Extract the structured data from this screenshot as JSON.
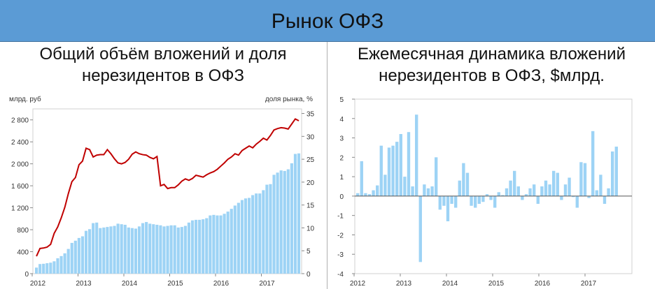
{
  "header": {
    "title": "Рынок ОФЗ"
  },
  "panels": {
    "left": {
      "title_line1": "Общий объём вложений и доля",
      "title_line2": "нерезидентов в ОФЗ"
    },
    "right": {
      "title_line1": "Ежемесячная динамика вложений",
      "title_line2": "нерезидентов в ОФЗ, $млрд."
    }
  },
  "colors": {
    "banner": "#5b9bd5",
    "bars": "#9dd3f5",
    "line": "#c00000"
  },
  "chart_data": [
    {
      "type": "bar+line",
      "left_axis_label": "млрд. руб",
      "right_axis_label": "доля рынка, %",
      "left_ylim": [
        0,
        3000
      ],
      "left_ticks": [
        "2 800",
        "2 400",
        "2 000",
        "1 600",
        "1 200",
        "800",
        "400",
        "0"
      ],
      "right_ylim": [
        0,
        36
      ],
      "right_ticks": [
        "35",
        "30",
        "25",
        "20",
        "15",
        "10",
        "5",
        "0"
      ],
      "x_labels": [
        "2012",
        "2013",
        "2014",
        "2015",
        "2016",
        "2017"
      ],
      "x_start": 2012,
      "bars_label": "Общий объём вложений",
      "line_label": "доля нерезидентов",
      "bar_values": [
        110,
        175,
        180,
        190,
        200,
        225,
        280,
        320,
        370,
        450,
        560,
        600,
        650,
        680,
        780,
        810,
        920,
        930,
        830,
        840,
        850,
        860,
        870,
        910,
        900,
        890,
        840,
        830,
        820,
        860,
        920,
        940,
        910,
        900,
        890,
        880,
        860,
        870,
        880,
        880,
        840,
        850,
        870,
        930,
        970,
        980,
        980,
        990,
        1010,
        1060,
        1070,
        1060,
        1060,
        1090,
        1130,
        1180,
        1240,
        1290,
        1340,
        1370,
        1380,
        1430,
        1460,
        1460,
        1520,
        1620,
        1630,
        1800,
        1840,
        1880,
        1870,
        1900,
        2010,
        2180,
        2190
      ],
      "line_values": [
        3.8,
        5.5,
        5.6,
        5.8,
        6.4,
        8.8,
        10.2,
        12.2,
        14.5,
        17.5,
        20.1,
        21.0,
        23.8,
        24.6,
        27.4,
        27.1,
        25.5,
        25.9,
        26.0,
        26.0,
        27.1,
        26.2,
        25.1,
        24.2,
        24.0,
        24.3,
        25.0,
        26.1,
        26.6,
        26.2,
        26.0,
        25.9,
        25.4,
        25.1,
        25.6,
        19.2,
        19.5,
        18.6,
        18.8,
        18.8,
        19.4,
        20.2,
        20.7,
        20.4,
        20.8,
        21.5,
        21.3,
        21.1,
        21.6,
        22.0,
        22.3,
        22.8,
        23.5,
        24.2,
        25.0,
        25.5,
        26.2,
        25.9,
        26.9,
        27.4,
        27.9,
        27.5,
        28.3,
        28.9,
        29.6,
        29.2,
        30.2,
        31.4,
        31.7,
        31.9,
        31.8,
        31.6,
        32.7,
        33.8,
        33.4
      ]
    },
    {
      "type": "bar",
      "ylim": [
        -4,
        5
      ],
      "y_ticks": [
        "5",
        "4",
        "3",
        "2",
        "1",
        "0",
        "-1",
        "-2",
        "-3",
        "-4"
      ],
      "x_labels": [
        "2012",
        "2013",
        "2014",
        "2015",
        "2016",
        "2017"
      ],
      "x_start": 2012,
      "values": [
        0.15,
        1.8,
        0.15,
        0.1,
        0.3,
        0.55,
        2.6,
        1.1,
        2.5,
        2.6,
        2.8,
        3.2,
        1.0,
        3.3,
        0.5,
        4.2,
        -3.4,
        0.6,
        0.4,
        0.5,
        2.0,
        -0.7,
        -0.5,
        -1.3,
        -0.4,
        -0.6,
        0.8,
        1.7,
        1.2,
        -0.5,
        -0.6,
        -0.4,
        -0.3,
        0.1,
        -0.2,
        -0.6,
        0.2,
        0.05,
        0.4,
        0.8,
        1.3,
        0.5,
        -0.2,
        0.1,
        0.4,
        0.6,
        -0.4,
        0.5,
        0.8,
        0.6,
        1.3,
        1.2,
        -0.2,
        0.6,
        0.95,
        -0.05,
        -0.6,
        1.75,
        1.7,
        -0.1,
        3.35,
        0.3,
        1.1,
        -0.4,
        0.4,
        2.3,
        2.55
      ]
    }
  ]
}
